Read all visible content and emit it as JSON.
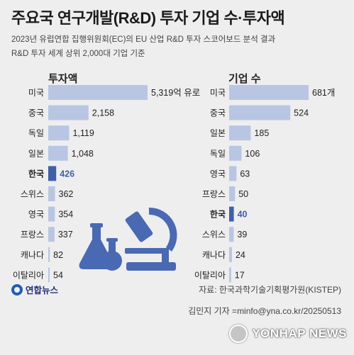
{
  "header": {
    "title": "주요국 연구개발(R&D) 투자 기업 수·투자액",
    "subtitle_line1": "2023년 유럽연합 집행위원회(EC)의 EU 산업 R&D 투자 스코어보드 분석 결과",
    "subtitle_line2": "R&D 투자 세계 상위 2,000대 기업 기준"
  },
  "footer": {
    "source": "자료: 한국과학기술기획평가원(KISTEP)",
    "byline": "김민지 기자 =minfo@yna.co.kr/20250513",
    "logo_text": "연합뉴스",
    "watermark": "YONHAP NEWS"
  },
  "colors": {
    "bar": "#b8c6e3",
    "highlight_bar": "#3f5fa8",
    "text": "#222222"
  },
  "chart_data": [
    {
      "type": "bar",
      "orientation": "horizontal",
      "title": "투자액",
      "categories": [
        "미국",
        "중국",
        "독일",
        "일본",
        "한국",
        "스위스",
        "영국",
        "프랑스",
        "캐나다",
        "이탈리아"
      ],
      "values": [
        5319,
        2158,
        1119,
        1048,
        426,
        362,
        354,
        337,
        82,
        54
      ],
      "value_labels": [
        "5,319억 유로",
        "2,158",
        "1,119",
        "1,048",
        "426",
        "362",
        "354",
        "337",
        "82",
        "54"
      ],
      "highlight": "한국",
      "xlim": [
        0,
        5319
      ]
    },
    {
      "type": "bar",
      "orientation": "horizontal",
      "title": "기업 수",
      "categories": [
        "미국",
        "중국",
        "일본",
        "독일",
        "영국",
        "프랑스",
        "한국",
        "스위스",
        "캐나다",
        "이탈리아"
      ],
      "values": [
        681,
        524,
        185,
        106,
        63,
        50,
        40,
        39,
        24,
        17
      ],
      "value_labels": [
        "681개",
        "524",
        "185",
        "106",
        "63",
        "50",
        "40",
        "39",
        "24",
        "17"
      ],
      "highlight": "한국",
      "xlim": [
        0,
        681
      ]
    }
  ]
}
